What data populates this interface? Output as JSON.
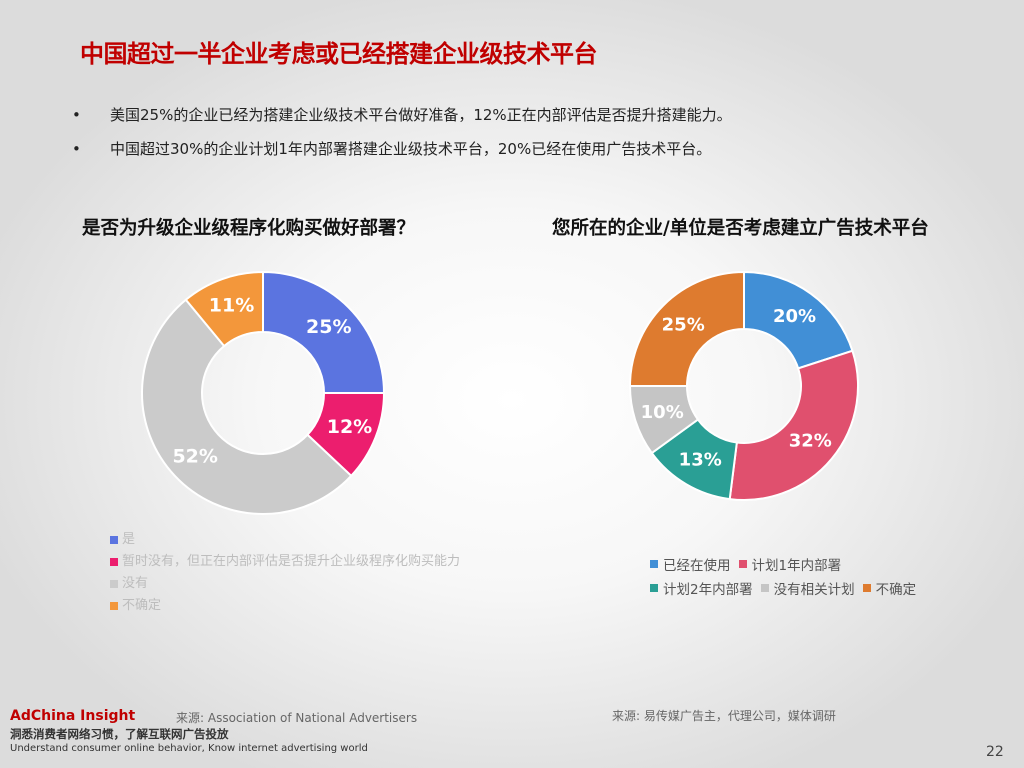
{
  "title": "中国超过一半企业考虑或已经搭建企业级技术平台",
  "bullets": [
    {
      "dot": "•",
      "text": "美国25%的企业已经为搭建企业级技术平台做好准备，12%正在内部评估是否提升搭建能力。"
    },
    {
      "dot": "•",
      "text": "中国超过30%的企业计划1年内部署搭建企业级技术平台，20%已经在使用广告技术平台。"
    }
  ],
  "chart_data": [
    {
      "type": "pie",
      "donut": true,
      "title": "是否为升级企业级程序化购买做好部署？",
      "legend_position": "bottom",
      "categories": [
        "是",
        "暂时没有，但正在内部评估是否提升企业级程序化购买能力",
        "没有",
        "不确定"
      ],
      "values": [
        25,
        12,
        52,
        11
      ],
      "labels": [
        "25%",
        "12%",
        "52%",
        "11%"
      ],
      "colors": [
        "#5b74e0",
        "#ec1e6e",
        "#cbcbcb",
        "#f3973b"
      ],
      "label_colors": [
        "#ffffff",
        "#ffffff",
        "#ffffff",
        "#ffffff"
      ]
    },
    {
      "type": "pie",
      "donut": true,
      "title": "您所在的企业/单位是否考虑建立广告技术平台",
      "legend_position": "bottom",
      "categories": [
        "已经在使用",
        "计划1年内部署",
        "计划2年内部署",
        "没有相关计划",
        "不确定"
      ],
      "values": [
        20,
        32,
        13,
        10,
        25
      ],
      "labels": [
        "20%",
        "32%",
        "13%",
        "10%",
        "25%"
      ],
      "colors": [
        "#418fd6",
        "#e0506e",
        "#2a9f95",
        "#c5c5c5",
        "#de7b2f"
      ],
      "label_colors": [
        "#ffffff",
        "#ffffff",
        "#ffffff",
        "#ffffff",
        "#ffffff"
      ]
    }
  ],
  "footer": {
    "brand": "AdChina Insight",
    "brand_cn": "洞悉消费者网络习惯，了解互联网广告投放",
    "brand_en": "Understand consumer online behavior, Know internet advertising world",
    "source_left": "来源:  Association of National Advertisers",
    "source_right": "来源:  易传媒广告主，代理公司，媒体调研",
    "page_number": "22"
  }
}
